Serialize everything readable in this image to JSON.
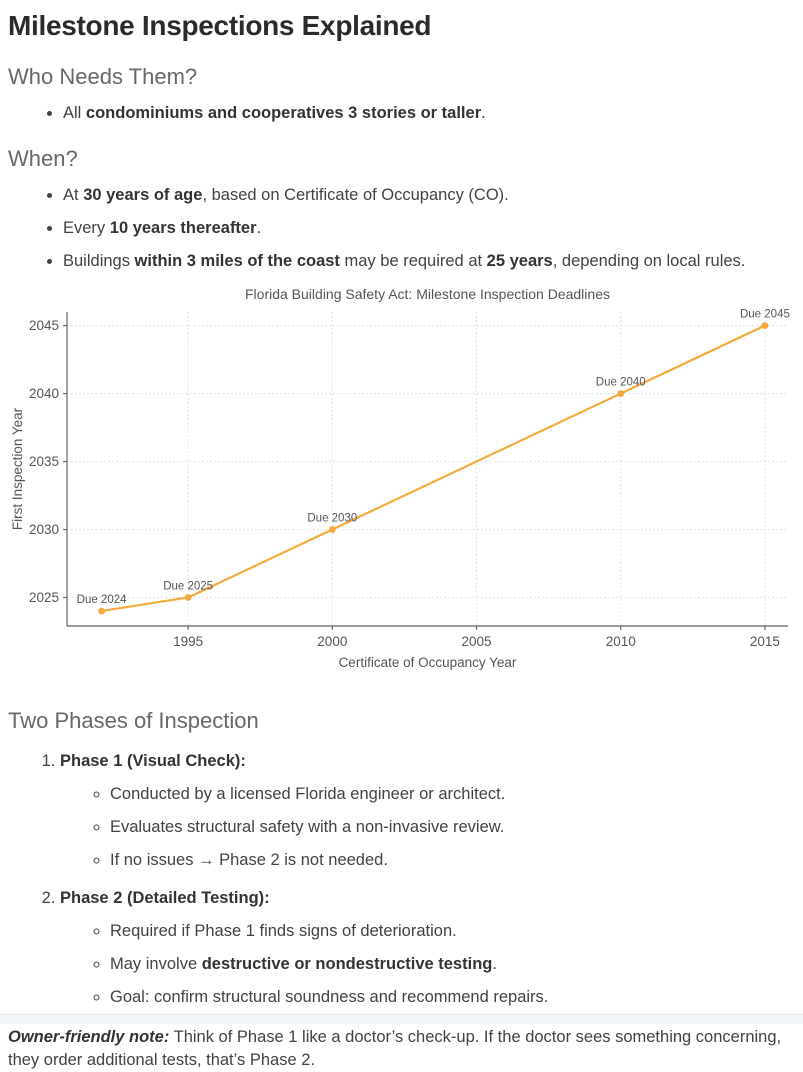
{
  "title": "Milestone Inspections Explained",
  "who_needs": {
    "heading": "Who Needs Them?",
    "bullets": [
      [
        {
          "t": "All ",
          "b": 0
        },
        {
          "t": "condominiums and cooperatives 3 stories or taller",
          "b": 1
        },
        {
          "t": ".",
          "b": 0
        }
      ]
    ]
  },
  "when": {
    "heading": "When?",
    "bullets": [
      [
        {
          "t": "At ",
          "b": 0
        },
        {
          "t": "30 years of age",
          "b": 1
        },
        {
          "t": ", based on Certificate of Occupancy (CO).",
          "b": 0
        }
      ],
      [
        {
          "t": "Every ",
          "b": 0
        },
        {
          "t": "10 years thereafter",
          "b": 1
        },
        {
          "t": ".",
          "b": 0
        }
      ],
      [
        {
          "t": "Buildings ",
          "b": 0
        },
        {
          "t": "within 3 miles of the coast",
          "b": 1
        },
        {
          "t": " may be required at ",
          "b": 0
        },
        {
          "t": "25 years",
          "b": 1
        },
        {
          "t": ", depending on local rules.",
          "b": 0
        }
      ]
    ]
  },
  "chart_data": {
    "type": "line",
    "title": "Florida Building Safety Act: Milestone Inspection Deadlines",
    "xlabel": "Certificate of Occupancy Year",
    "ylabel": "First Inspection Year",
    "x": [
      1992,
      1995,
      2000,
      2010,
      2015
    ],
    "y": [
      2024,
      2025,
      2030,
      2040,
      2045
    ],
    "point_labels": [
      "Due 2024",
      "Due 2025",
      "Due 2030",
      "Due 2040",
      "Due 2045"
    ],
    "x_ticks": [
      1995,
      2000,
      2005,
      2010,
      2015
    ],
    "y_ticks": [
      2025,
      2030,
      2035,
      2040,
      2045
    ],
    "xlim": [
      1990.8,
      2015.8
    ],
    "ylim": [
      2022.9,
      2046.0
    ],
    "grid": true,
    "grid_style": "dotted",
    "line_color": "#f5aa3c",
    "marker": "circle",
    "legend": "none"
  },
  "phases": {
    "heading": "Two Phases of Inspection",
    "items": [
      {
        "title": "Phase 1 (Visual Check):",
        "bullets": [
          [
            {
              "t": "Conducted by a licensed Florida engineer or architect.",
              "b": 0
            }
          ],
          [
            {
              "t": "Evaluates structural safety with a non-invasive review.",
              "b": 0
            }
          ],
          [
            {
              "t": "If no issues → Phase 2 is not needed.",
              "b": 0
            }
          ]
        ]
      },
      {
        "title": "Phase 2 (Detailed Testing):",
        "bullets": [
          [
            {
              "t": "Required if Phase 1 finds signs of deterioration.",
              "b": 0
            }
          ],
          [
            {
              "t": "May involve ",
              "b": 0
            },
            {
              "t": "destructive or nondestructive testing",
              "b": 1
            },
            {
              "t": ".",
              "b": 0
            }
          ],
          [
            {
              "t": "Goal: confirm structural soundness and recommend repairs.",
              "b": 0
            }
          ]
        ]
      }
    ]
  },
  "note": {
    "lead": "Owner-friendly note:",
    "text": " Think of Phase 1 like a doctor’s check-up. If the doctor sees something concerning, they order additional tests, that’s Phase 2."
  }
}
